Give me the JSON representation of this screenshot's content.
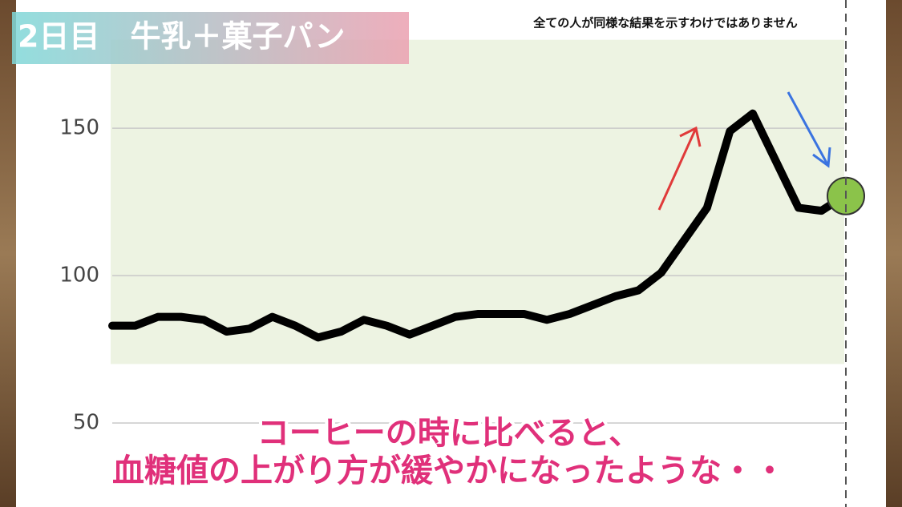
{
  "chart_data": {
    "type": "line",
    "title": "2日目　牛乳＋菓子パン",
    "subtitle": "全ての人が同様な結果を示すわけではありません",
    "annotations": [
      "コーヒーの時に比べると、",
      "血糖値の上がり方が緩やかになったような・・"
    ],
    "values": [
      83,
      83,
      86,
      86,
      85,
      81,
      82,
      86,
      83,
      79,
      81,
      85,
      83,
      80,
      83,
      86,
      87,
      87,
      87,
      85,
      87,
      90,
      93,
      95,
      101,
      112,
      123,
      149,
      155,
      139,
      123,
      122,
      127
    ],
    "color": "#000000",
    "ylim": [
      21.5,
      193.5
    ],
    "yticks": [
      50,
      100,
      150
    ],
    "grid": true,
    "target_range": [
      70,
      180
    ],
    "target_color": "#edf3e2",
    "marker_color": "#8bc34a"
  }
}
